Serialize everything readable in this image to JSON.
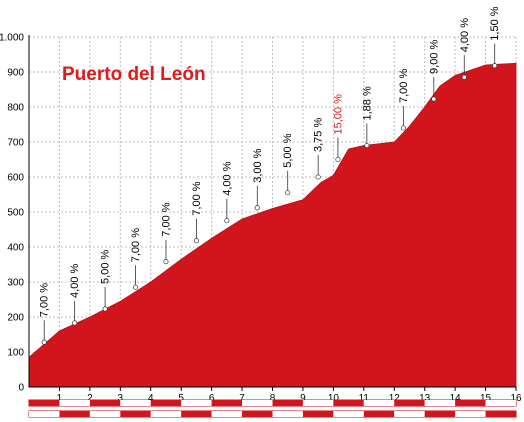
{
  "chart_data": {
    "type": "area",
    "title": "Puerto del León",
    "xlabel": "",
    "ylabel": "",
    "xlim": [
      0,
      16
    ],
    "ylim": [
      0,
      1000
    ],
    "y_ticks": [
      0,
      100,
      200,
      300,
      400,
      500,
      600,
      700,
      800,
      900,
      1000
    ],
    "y_tick_labels": [
      "0",
      "100",
      "200",
      "300",
      "400",
      "500",
      "600",
      "700",
      "800",
      "900",
      "1.000"
    ],
    "x_ticks": [
      "1",
      "2",
      "3",
      "4",
      "5",
      "6",
      "7",
      "8",
      "9",
      "10",
      "11",
      "12",
      "13",
      "14",
      "15",
      "16"
    ],
    "grid": true,
    "fill_color": "#d2151d",
    "highlight_color": "#e0191b",
    "profile": {
      "x": [
        0,
        1,
        2,
        3,
        4,
        5,
        6,
        7,
        8,
        9,
        9.6,
        10,
        10.5,
        11,
        12,
        12.5,
        13,
        13.5,
        14,
        15,
        16
      ],
      "y": [
        85,
        160,
        200,
        245,
        300,
        365,
        425,
        480,
        510,
        535,
        585,
        605,
        680,
        690,
        700,
        745,
        800,
        860,
        890,
        920,
        925
      ]
    },
    "segments": [
      {
        "x": 0.5,
        "y": 128,
        "label": "7,00 %"
      },
      {
        "x": 1.5,
        "y": 183,
        "label": "4,00 %"
      },
      {
        "x": 2.5,
        "y": 223,
        "label": "5,00 %"
      },
      {
        "x": 3.5,
        "y": 285,
        "label": "7,00 %"
      },
      {
        "x": 4.5,
        "y": 358,
        "label": "7,00 %"
      },
      {
        "x": 5.5,
        "y": 418,
        "label": "7,00 %"
      },
      {
        "x": 6.5,
        "y": 475,
        "label": "4,00 %"
      },
      {
        "x": 7.5,
        "y": 512,
        "label": "3,00 %"
      },
      {
        "x": 8.5,
        "y": 555,
        "label": "5,00 %"
      },
      {
        "x": 9.5,
        "y": 600,
        "label": "3,75 %"
      },
      {
        "x": 10.15,
        "y": 650,
        "label": "15,00 %",
        "highlight": true
      },
      {
        "x": 11.1,
        "y": 690,
        "label": "1,88 %"
      },
      {
        "x": 12.3,
        "y": 740,
        "label": "7,00 %"
      },
      {
        "x": 13.3,
        "y": 823,
        "label": "9,00 %"
      },
      {
        "x": 14.3,
        "y": 885,
        "label": "4,00 %"
      },
      {
        "x": 15.3,
        "y": 918,
        "label": "1,50 %"
      }
    ]
  }
}
